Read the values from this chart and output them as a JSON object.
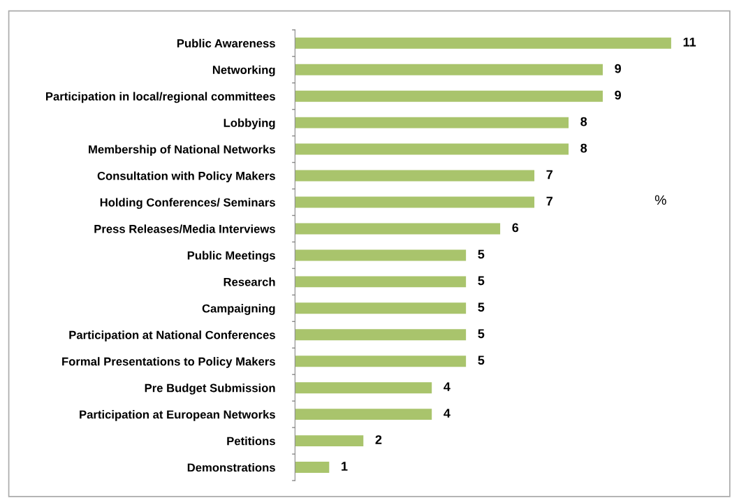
{
  "chart_data": {
    "type": "bar",
    "orientation": "horizontal",
    "categories": [
      "Public Awareness",
      "Networking",
      "Participation in local/regional committees",
      "Lobbying",
      "Membership of National Networks",
      "Consultation with Policy Makers",
      "Holding Conferences/ Seminars",
      "Press Releases/Media Interviews",
      "Public Meetings",
      "Research",
      "Campaigning",
      "Participation at National Conferences",
      "Formal Presentations to Policy Makers",
      "Pre Budget Submission",
      "Participation at European Networks",
      "Petitions",
      "Demonstrations"
    ],
    "values": [
      11,
      9,
      9,
      8,
      8,
      7,
      7,
      6,
      5,
      5,
      5,
      5,
      5,
      4,
      4,
      2,
      1
    ],
    "color": "#a9c46c",
    "data_labels": true,
    "grid": false,
    "legend": false,
    "tick_labels": "y",
    "annotations": [
      {
        "text": "%"
      }
    ]
  }
}
